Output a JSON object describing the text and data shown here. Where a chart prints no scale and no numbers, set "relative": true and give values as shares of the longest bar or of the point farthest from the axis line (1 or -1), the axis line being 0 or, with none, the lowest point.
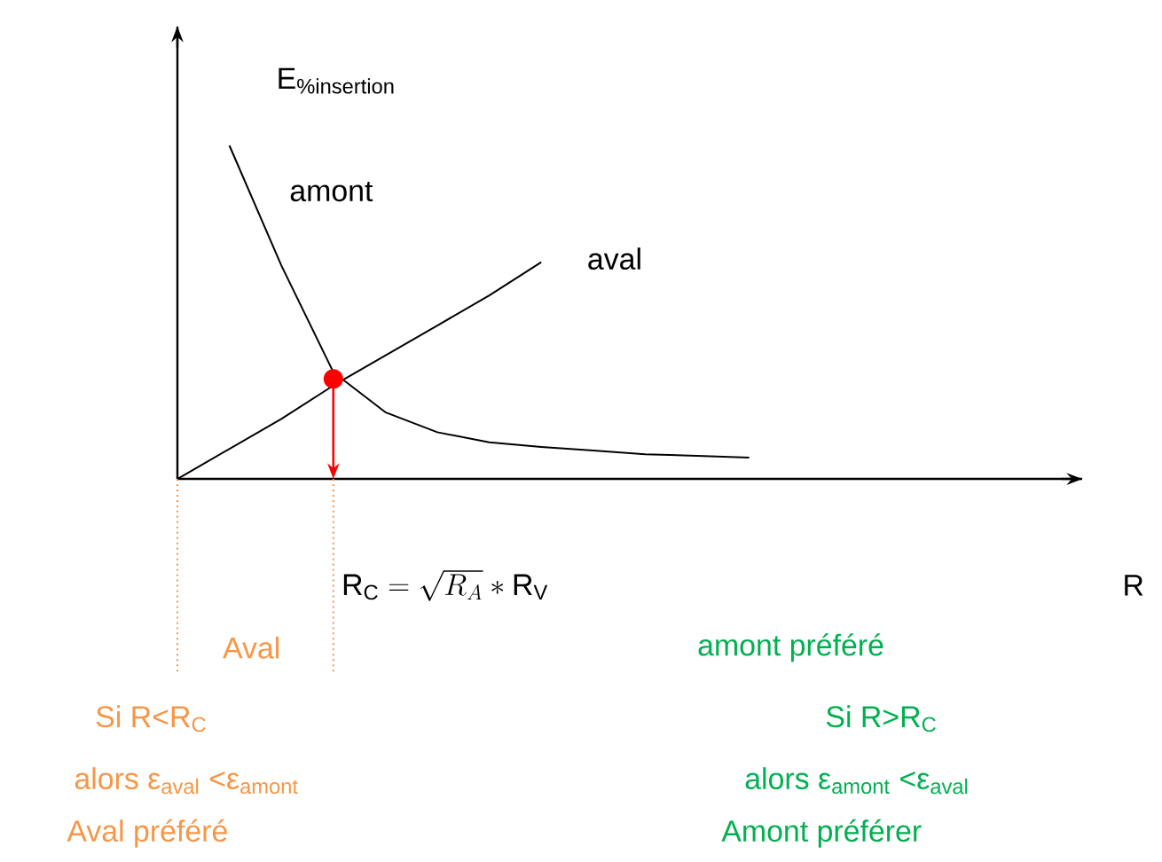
{
  "chart_data": {
    "type": "line",
    "relative": true,
    "legend": false,
    "ylabel": "\\mathrm{E}_{\\mathrm{\\%insertion}}",
    "categories": [
      null,
      null,
      null,
      null,
      null,
      null,
      null,
      null,
      null,
      null,
      null,
      null
    ],
    "series": [
      {
        "name": "amont",
        "color": "#000000",
        "values": [
          null,
          1,
          0.64,
          0.32,
          0.2,
          0.14,
          0.11,
          0.096,
          0.085,
          0.074,
          0.069,
          0.064
        ]
      },
      {
        "name": "aval",
        "color": "#000000",
        "values": [
          0,
          0.09,
          0.18,
          0.28,
          0.37,
          0.46,
          0.55,
          0.65,
          null,
          null,
          null,
          null
        ]
      }
    ],
    "annotations": [
      "\\mathrm{R}_{\\mathrm{C}} = \\sqrt{R_{A}} * \\mathrm{R}_{\\mathrm{V}}",
      "Aval",
      "Si R<R$_{C}$",
      "alors ε$_{aval}$ <ε$_{amont}$",
      "Aval préféré",
      "amont préféré",
      "Si R>R$_{C}$",
      "alors ε$_{amont}$ <ε$_{aval}$",
      "Amont préférer",
      "R"
    ]
  }
}
